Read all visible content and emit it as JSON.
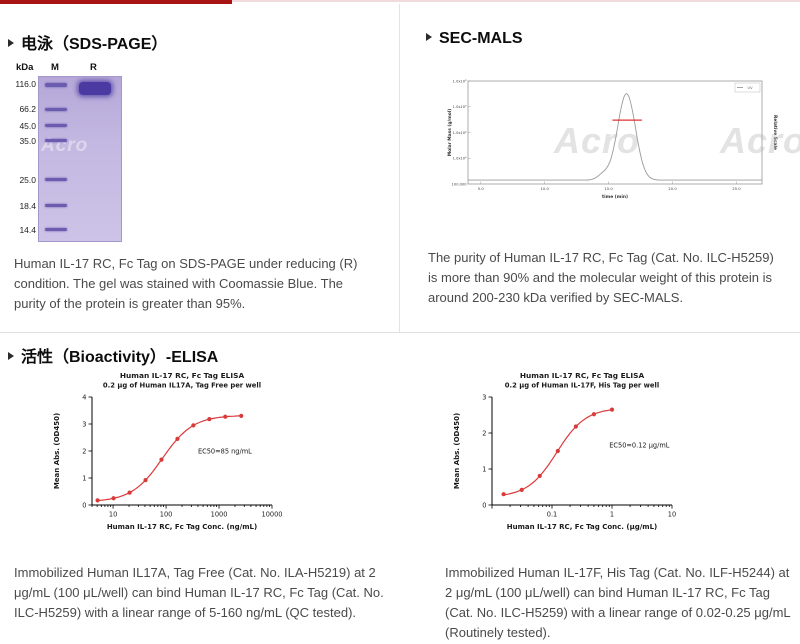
{
  "page": {
    "accent_color": "#a81313",
    "watermark_text": "Acro"
  },
  "sections": {
    "sds_page": {
      "title": "电泳（SDS-PAGE）",
      "caption": "Human IL-17 RC, Fc Tag on SDS-PAGE under reducing (R) condition. The gel was stained with Coomassie Blue. The purity of the protein is greater than 95%.",
      "gel": {
        "unit_label": "kDa",
        "lane_labels": [
          "M",
          "R"
        ],
        "marker_labels": [
          "116.0",
          "66.2",
          "45.0",
          "35.0",
          "25.0",
          "18.4",
          "14.4"
        ],
        "band_positions": [
          0.05,
          0.2,
          0.3,
          0.39,
          0.625,
          0.785,
          0.93
        ],
        "sample_band_position": 0.075
      }
    },
    "sec_mals": {
      "title": "SEC-MALS",
      "caption": "The purity of Human IL-17 RC, Fc Tag (Cat. No. ILC-H5259) is more than 90% and the molecular weight of this protein is around 200-230 kDa verified by SEC-MALS."
    },
    "bioactivity": {
      "title": "活性（Bioactivity）-ELISA",
      "left_caption": "Immobilized Human IL17A, Tag Free (Cat. No. ILA-H5219) at 2 μg/mL (100 μL/well) can bind Human IL-17 RC, Fc Tag (Cat. No. ILC-H5259) with a linear range of 5-160 ng/mL (QC tested).",
      "right_caption": "Immobilized Human IL-17F, His Tag (Cat. No. ILF-H5244) at 2 μg/mL (100 μL/well) can bind Human IL-17 RC, Fc Tag (Cat. No. ILC-H5259) with a linear range of 0.02-0.25 μg/mL (Routinely tested)."
    }
  },
  "chart_data": [
    {
      "id": "sec_mals",
      "type": "line",
      "title": "",
      "xlabel": "time (min)",
      "ylabel": "Molar Mass (g/mol)",
      "right_ylabel": "Relative Scale",
      "x_range": [
        4,
        27
      ],
      "x_ticks": [
        5.0,
        10.0,
        15.0,
        20.0,
        25.0
      ],
      "y_tick_labels": [
        "1.0x10⁶",
        "1.0x10⁵",
        "1.0x10⁴",
        "1.0x10³",
        "100.000"
      ],
      "legend": "UV",
      "trace": {
        "name": "UV",
        "color": "#9a9a9a",
        "baseline": 0.02,
        "peak_center": 16.4,
        "peak_sigma": 0.7,
        "peak_height": 0.93,
        "shoulder_center": 14.6,
        "shoulder_sigma": 0.45,
        "shoulder_height": 0.06
      },
      "mass_line": {
        "color": "#e03030",
        "x_start": 15.3,
        "x_end": 17.6,
        "height_frac": 0.62,
        "molar_mass_kda": "200-230"
      }
    },
    {
      "id": "elisa_il17a",
      "type": "scatter",
      "title": "Human IL-17 RC, Fc Tag ELISA",
      "subtitle": "0.2 μg of Human IL17A, Tag Free per well",
      "xlabel": "Human IL-17 RC, Fc Tag Conc. (ng/mL)",
      "ylabel": "Mean Abs. (OD450)",
      "x_scale": "log",
      "x_range": [
        4,
        10000
      ],
      "x_ticks": [
        10,
        100,
        1000,
        10000
      ],
      "y_range": [
        0,
        4
      ],
      "y_ticks": [
        0,
        1,
        2,
        3,
        4
      ],
      "point_color": "#d93a3a",
      "x": [
        5.1,
        10.2,
        20.5,
        41,
        82,
        164,
        328,
        656,
        1312,
        2625
      ],
      "y": [
        0.17,
        0.25,
        0.46,
        0.92,
        1.68,
        2.45,
        2.95,
        3.18,
        3.27,
        3.3
      ],
      "fit": {
        "bottom": 0.12,
        "top": 3.32,
        "ec50": 85,
        "hill": 1.5
      },
      "annotation": {
        "text": "EC50=85 ng/mL",
        "x": 400,
        "y": 1.9
      }
    },
    {
      "id": "elisa_il17f",
      "type": "scatter",
      "title": "Human IL-17 RC, Fc Tag ELISA",
      "subtitle": "0.2 μg of Human IL-17F, His Tag per well",
      "xlabel": "Human IL-17 RC, Fc Tag Conc. (μg/mL)",
      "ylabel": "Mean Abs. (OD450)",
      "x_scale": "log",
      "x_range": [
        0.01,
        10
      ],
      "x_ticks": [
        0.1,
        1,
        10
      ],
      "y_range": [
        0,
        3
      ],
      "y_ticks": [
        0,
        1,
        2,
        3
      ],
      "point_color": "#d93a3a",
      "x": [
        0.0156,
        0.0313,
        0.0625,
        0.125,
        0.25,
        0.5,
        1
      ],
      "y": [
        0.3,
        0.42,
        0.81,
        1.5,
        2.18,
        2.52,
        2.65
      ],
      "fit": {
        "bottom": 0.22,
        "top": 2.7,
        "ec50": 0.12,
        "hill": 1.8
      },
      "annotation": {
        "text": "EC50=0.12 μg/mL",
        "x": 0.9,
        "y": 1.6
      }
    }
  ]
}
